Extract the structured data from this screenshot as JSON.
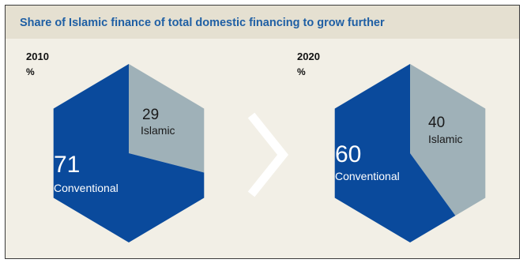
{
  "title": "Share of Islamic finance of total domestic financing to grow further",
  "colors": {
    "conventional": "#0a4a9c",
    "islamic": "#9fb1b8",
    "background": "#f2efe6",
    "title_bar": "#e5e0d1",
    "title_text": "#1f5fa4",
    "arrow": "#ffffff"
  },
  "chart_data": [
    {
      "type": "pie",
      "year": "2010",
      "unit": "%",
      "slices": [
        {
          "label": "Conventional",
          "value": 71
        },
        {
          "label": "Islamic",
          "value": 29
        }
      ]
    },
    {
      "type": "pie",
      "year": "2020",
      "unit": "%",
      "slices": [
        {
          "label": "Conventional",
          "value": 60
        },
        {
          "label": "Islamic",
          "value": 40
        }
      ]
    }
  ],
  "arrow_icon": "chevron-right-icon"
}
